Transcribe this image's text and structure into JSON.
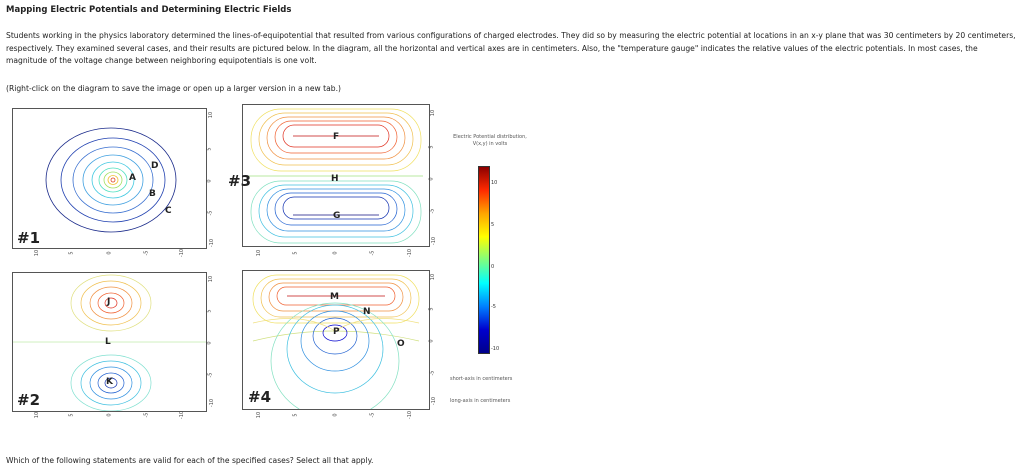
{
  "title": "Mapping Electric Potentials and Determining Electric Fields",
  "intro": "Students working in the physics laboratory determined the lines-of-equipotential that resulted from various configurations of charged electrodes. They did so by measuring the electric potential at locations in an x-y plane that was 30 centimeters by 20 centimeters, respectively. They examined several cases, and their results are pictured below. In the diagram, all the horizontal and vertical axes are in centimeters. Also, the \"temperature gauge\" indicates the relative values of the electric potentials. In most cases, the magnitude of the voltage change between neighboring equipotentials is one volt.",
  "hint": "(Right-click on the diagram to save the image or open up a larger version in a new tab.)",
  "question": "Which of the following statements are valid for each of the specified cases? Select all that apply.",
  "cases": {
    "c1": {
      "label": "#1",
      "points": {
        "A": "A",
        "B": "B",
        "C": "C",
        "D": "D"
      }
    },
    "c2": {
      "label": "#2",
      "points": {
        "J": "J",
        "K": "K",
        "L": "L"
      }
    },
    "c3": {
      "label": "#3",
      "points": {
        "F": "F",
        "G": "G",
        "H": "H"
      }
    },
    "c4": {
      "label": "#4",
      "points": {
        "M": "M",
        "N": "N",
        "O": "O",
        "P": "P"
      }
    }
  },
  "axis_ticks": {
    "x": [
      "10",
      "5",
      "0",
      "-5",
      "-10"
    ],
    "y": [
      "10",
      "5",
      "0",
      "-5",
      "-10"
    ]
  },
  "colorbar": {
    "title_line1": "Electric Potential distribution,",
    "title_line2": "V(x,y) in volts",
    "ticks": [
      "10",
      "5",
      "0",
      "-5",
      "-10"
    ],
    "note_short": "short-axis in centimeters",
    "note_long": "long-axis in centimeters",
    "colors": [
      "#8b0000",
      "#ff2a00",
      "#ffa500",
      "#ffff00",
      "#7fff7f",
      "#00ffff",
      "#0080ff",
      "#0000cd",
      "#00008b"
    ]
  }
}
